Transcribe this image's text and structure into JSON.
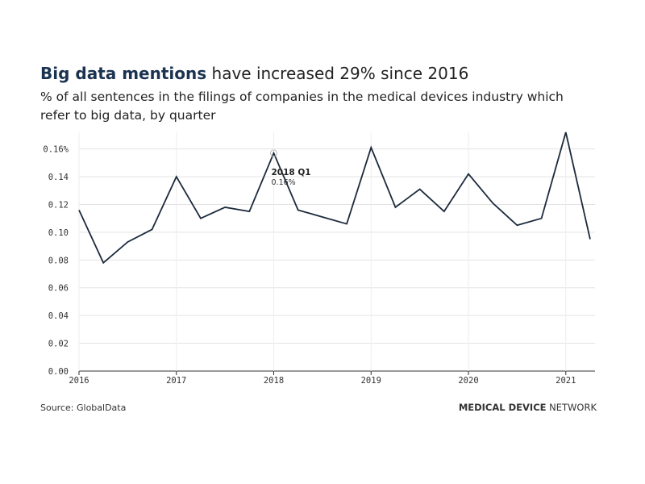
{
  "chart_data": {
    "type": "line",
    "title": [
      "Big data mentions",
      "have increased 29% since 2016"
    ],
    "subtitle": [
      "% of all sentences in the filings of companies in the medical devices industry which",
      "refer to big data, by quarter"
    ],
    "source": "Source: GlobalData",
    "brand": [
      "MEDICAL DEVICE",
      "NETWORK"
    ],
    "x": [
      2016,
      2016.25,
      2016.5,
      2016.75,
      2017,
      2017.25,
      2017.5,
      2017.75,
      2018,
      2018.25,
      2018.5,
      2018.75,
      2019,
      2019.25,
      2019.5,
      2019.75,
      2020,
      2020.25,
      2020.5,
      2020.75,
      2021,
      2021.25
    ],
    "series": [
      {
        "name": "Big data",
        "color": "#1b2a3c",
        "values": [
          0.116,
          0.078,
          0.093,
          0.102,
          0.14,
          0.11,
          0.118,
          0.115,
          0.157,
          0.116,
          0.111,
          0.106,
          0.161,
          0.118,
          0.131,
          0.115,
          0.142,
          0.121,
          0.105,
          0.11,
          0.172,
          0.095
        ]
      }
    ],
    "xlim": [
      2016,
      2021.3
    ],
    "xticks": [
      2016,
      2017,
      2018,
      2019,
      2020,
      2021
    ],
    "ylim": [
      0,
      0.172
    ],
    "yticks": [
      {
        "value": 0,
        "label": "0.00"
      },
      0.02,
      0.04,
      0.06,
      0.08,
      {
        "value": 0.1,
        "label": "0.10"
      },
      0.12,
      0.14,
      {
        "value": 0.16,
        "label": "0.16%"
      }
    ],
    "grid": true,
    "annotation": {
      "x": 2018,
      "label": "2018 Q1",
      "value_label": "0.16%"
    }
  }
}
